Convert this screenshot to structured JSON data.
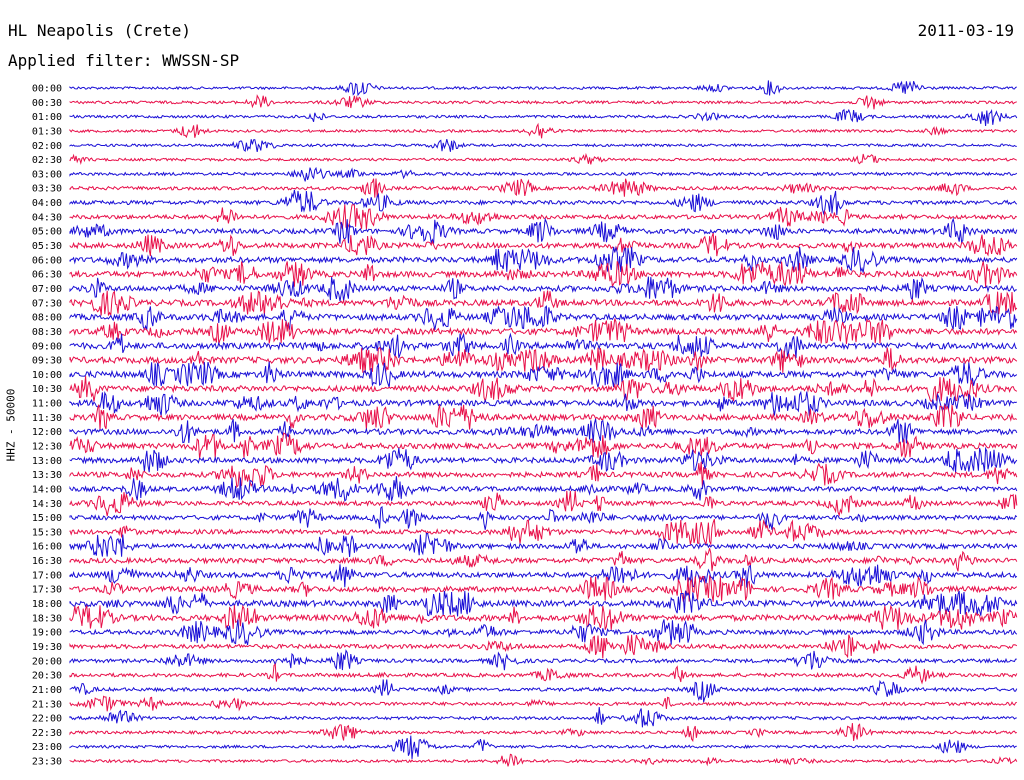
{
  "header": {
    "station": "HL Neapolis (Crete)",
    "date": "2011-03-19",
    "filter": "Applied filter: WWSSN-SP"
  },
  "colors": {
    "blue": "#1a0fd6",
    "red": "#e8104a"
  },
  "chart_data": {
    "type": "line",
    "ylabel": "HHZ - 50000",
    "row_labels": [
      "00:00",
      "00:30",
      "01:00",
      "01:30",
      "02:00",
      "02:30",
      "03:00",
      "03:30",
      "04:00",
      "04:30",
      "05:00",
      "05:30",
      "06:00",
      "06:30",
      "07:00",
      "07:30",
      "08:00",
      "08:30",
      "09:00",
      "09:30",
      "10:00",
      "10:30",
      "11:00",
      "11:30",
      "12:00",
      "12:30",
      "13:00",
      "13:30",
      "14:00",
      "14:30",
      "15:00",
      "15:30",
      "16:00",
      "16:30",
      "17:00",
      "17:30",
      "18:00",
      "18:30",
      "19:00",
      "19:30",
      "20:00",
      "20:30",
      "21:00",
      "21:30",
      "22:00",
      "22:30",
      "23:00",
      "23:30"
    ],
    "trace_colors": [
      "blue",
      "red"
    ],
    "activity_levels": [
      0.4,
      0.5,
      0.5,
      0.4,
      0.4,
      0.4,
      0.6,
      0.9,
      1.2,
      1.3,
      1.6,
      1.8,
      2.0,
      2.1,
      2.1,
      2.2,
      2.2,
      2.3,
      2.3,
      2.4,
      2.4,
      2.2,
      2.1,
      2.1,
      2.0,
      2.0,
      1.9,
      1.8,
      1.6,
      1.4,
      1.4,
      1.5,
      1.6,
      1.7,
      1.8,
      1.9,
      2.2,
      2.2,
      1.5,
      1.3,
      1.0,
      1.0,
      0.9,
      0.8,
      0.7,
      0.6,
      0.5,
      0.5
    ]
  }
}
